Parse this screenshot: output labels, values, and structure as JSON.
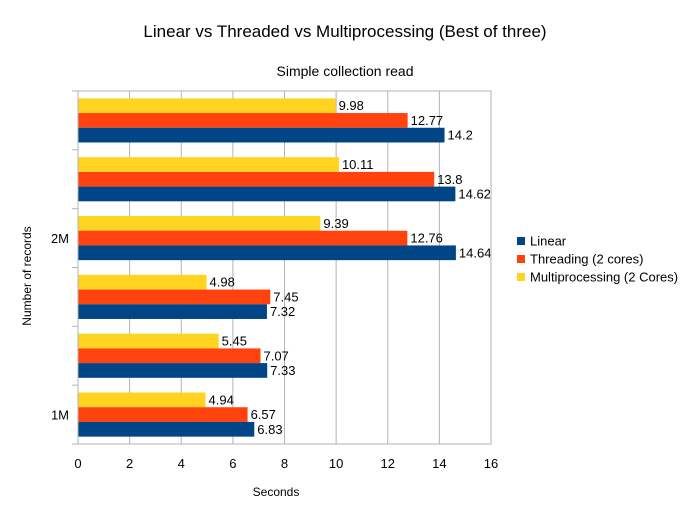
{
  "chart_data": {
    "type": "bar",
    "orientation": "horizontal",
    "title": "Linear vs Threaded vs Multiprocessing (Best of three)",
    "subtitle": "Simple collection read",
    "xlabel": "Seconds",
    "ylabel": "Number of records",
    "xlim": [
      0,
      16
    ],
    "xticks": [
      0,
      2,
      4,
      6,
      8,
      10,
      12,
      14,
      16
    ],
    "grid": "vertical",
    "legend_position": "right",
    "category_labels": [
      "",
      "",
      "2M",
      "",
      "",
      "1M"
    ],
    "series": [
      {
        "name": "Multiprocessing (2 Cores)",
        "color": "#ffd320",
        "values": [
          9.98,
          10.11,
          9.39,
          4.98,
          5.45,
          4.94
        ]
      },
      {
        "name": "Threading (2 cores)",
        "color": "#ff420e",
        "values": [
          12.77,
          13.8,
          12.76,
          7.45,
          7.07,
          6.57
        ]
      },
      {
        "name": "Linear",
        "color": "#004586",
        "values": [
          14.2,
          14.62,
          14.64,
          7.32,
          7.33,
          6.83
        ]
      }
    ],
    "legend_order": [
      "Linear",
      "Threading (2 cores)",
      "Multiprocessing (2 Cores)"
    ]
  }
}
